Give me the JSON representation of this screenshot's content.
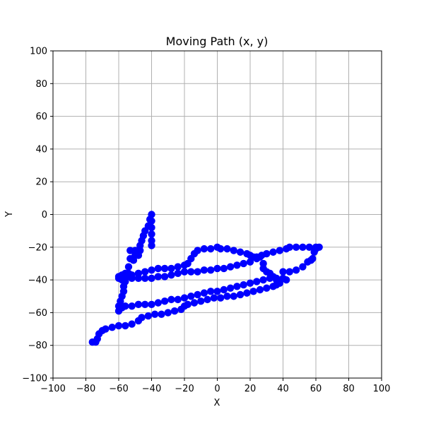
{
  "chart_data": {
    "type": "scatter",
    "title": "Moving Path (x, y)",
    "xlabel": "X",
    "ylabel": "Y",
    "xlim": [
      -100,
      100
    ],
    "ylim": [
      -100,
      100
    ],
    "xticks": [
      -100,
      -80,
      -60,
      -40,
      -20,
      0,
      20,
      40,
      60,
      80,
      100
    ],
    "yticks": [
      -100,
      -80,
      -60,
      -40,
      -20,
      0,
      20,
      40,
      60,
      80,
      100
    ],
    "grid": true,
    "marker": "circle",
    "color": "#0000ff",
    "series": [
      {
        "points": [
          [
            -40,
            0
          ],
          [
            -41,
            -3
          ],
          [
            -42,
            -7
          ],
          [
            -44,
            -10
          ],
          [
            -45,
            -13
          ],
          [
            -46,
            -16
          ],
          [
            -47,
            -19
          ],
          [
            -47,
            -22
          ],
          [
            -48,
            -25
          ],
          [
            -50,
            -22
          ],
          [
            -50,
            -25
          ],
          [
            -51,
            -28
          ],
          [
            -53,
            -22
          ],
          [
            -53,
            -27
          ],
          [
            -54,
            -32
          ],
          [
            -54,
            -36
          ],
          [
            -56,
            -36
          ],
          [
            -58,
            -37
          ],
          [
            -60,
            -39
          ],
          [
            -58,
            -40
          ],
          [
            -56,
            -41
          ],
          [
            -57,
            -44
          ],
          [
            -57,
            -47
          ],
          [
            -58,
            -50
          ],
          [
            -59,
            -53
          ],
          [
            -60,
            -56
          ],
          [
            -60,
            -59
          ],
          [
            -58,
            -57
          ],
          [
            -56,
            -56
          ],
          [
            -52,
            -56
          ],
          [
            -48,
            -55
          ],
          [
            -44,
            -55
          ],
          [
            -40,
            -55
          ],
          [
            -36,
            -54
          ],
          [
            -32,
            -53
          ],
          [
            -28,
            -52
          ],
          [
            -24,
            -52
          ],
          [
            -20,
            -51
          ],
          [
            -16,
            -50
          ],
          [
            -12,
            -49
          ],
          [
            -8,
            -48
          ],
          [
            -4,
            -47
          ],
          [
            0,
            -47
          ],
          [
            4,
            -46
          ],
          [
            8,
            -45
          ],
          [
            12,
            -44
          ],
          [
            16,
            -43
          ],
          [
            20,
            -42
          ],
          [
            24,
            -41
          ],
          [
            28,
            -40
          ],
          [
            32,
            -39
          ],
          [
            36,
            -39
          ],
          [
            40,
            -39
          ],
          [
            42,
            -40
          ],
          [
            40,
            -35
          ],
          [
            44,
            -35
          ],
          [
            48,
            -34
          ],
          [
            52,
            -32
          ],
          [
            55,
            -29
          ],
          [
            57,
            -28
          ],
          [
            58,
            -27
          ],
          [
            59,
            -23
          ],
          [
            60,
            -21
          ],
          [
            62,
            -20
          ],
          [
            60,
            -20
          ],
          [
            56,
            -20
          ],
          [
            52,
            -20
          ],
          [
            48,
            -20
          ],
          [
            44,
            -20
          ],
          [
            42,
            -21
          ],
          [
            38,
            -22
          ],
          [
            34,
            -23
          ],
          [
            30,
            -24
          ],
          [
            27,
            -25
          ],
          [
            24,
            -26
          ],
          [
            22,
            -26
          ],
          [
            20,
            -25
          ],
          [
            18,
            -24
          ],
          [
            14,
            -23
          ],
          [
            10,
            -22
          ],
          [
            6,
            -21
          ],
          [
            2,
            -21
          ],
          [
            0,
            -20
          ],
          [
            -4,
            -21
          ],
          [
            -8,
            -21
          ],
          [
            -12,
            -22
          ],
          [
            -14,
            -24
          ],
          [
            -16,
            -27
          ],
          [
            -18,
            -30
          ],
          [
            -20,
            -31
          ],
          [
            -24,
            -32
          ],
          [
            -28,
            -33
          ],
          [
            -32,
            -33
          ],
          [
            -36,
            -33
          ],
          [
            -40,
            -34
          ],
          [
            -44,
            -35
          ],
          [
            -48,
            -36
          ],
          [
            -52,
            -37
          ],
          [
            -56,
            -38
          ],
          [
            -60,
            -38
          ],
          [
            -56,
            -39
          ],
          [
            -52,
            -39
          ],
          [
            -48,
            -39
          ],
          [
            -44,
            -39
          ],
          [
            -40,
            -39
          ],
          [
            -36,
            -38
          ],
          [
            -32,
            -38
          ],
          [
            -28,
            -37
          ],
          [
            -24,
            -36
          ],
          [
            -20,
            -35
          ],
          [
            -16,
            -35
          ],
          [
            -12,
            -35
          ],
          [
            -8,
            -34
          ],
          [
            -4,
            -34
          ],
          [
            0,
            -33
          ],
          [
            4,
            -33
          ],
          [
            8,
            -32
          ],
          [
            12,
            -31
          ],
          [
            16,
            -30
          ],
          [
            20,
            -29
          ],
          [
            24,
            -27
          ],
          [
            26,
            -26
          ],
          [
            28,
            -30
          ],
          [
            28,
            -33
          ],
          [
            30,
            -35
          ],
          [
            32,
            -36
          ],
          [
            34,
            -38
          ],
          [
            36,
            -40
          ],
          [
            38,
            -42
          ],
          [
            36,
            -43
          ],
          [
            34,
            -44
          ],
          [
            30,
            -45
          ],
          [
            26,
            -46
          ],
          [
            22,
            -47
          ],
          [
            18,
            -48
          ],
          [
            14,
            -49
          ],
          [
            10,
            -50
          ],
          [
            6,
            -50
          ],
          [
            2,
            -51
          ],
          [
            -2,
            -51
          ],
          [
            -6,
            -52
          ],
          [
            -10,
            -53
          ],
          [
            -14,
            -54
          ],
          [
            -18,
            -55
          ],
          [
            -20,
            -56
          ],
          [
            -22,
            -58
          ],
          [
            -26,
            -59
          ],
          [
            -30,
            -60
          ],
          [
            -34,
            -61
          ],
          [
            -38,
            -61
          ],
          [
            -42,
            -62
          ],
          [
            -46,
            -63
          ],
          [
            -48,
            -65
          ],
          [
            -52,
            -67
          ],
          [
            -56,
            -68
          ],
          [
            -60,
            -68
          ],
          [
            -64,
            -69
          ],
          [
            -68,
            -70
          ],
          [
            -70,
            -71
          ],
          [
            -72,
            -73
          ],
          [
            -73,
            -76
          ],
          [
            -74,
            -78
          ],
          [
            -76,
            -78
          ],
          [
            -40,
            -19
          ],
          [
            -40,
            -16
          ],
          [
            -40,
            -12
          ],
          [
            -40,
            -8
          ],
          [
            -40,
            -4
          ]
        ]
      }
    ]
  }
}
